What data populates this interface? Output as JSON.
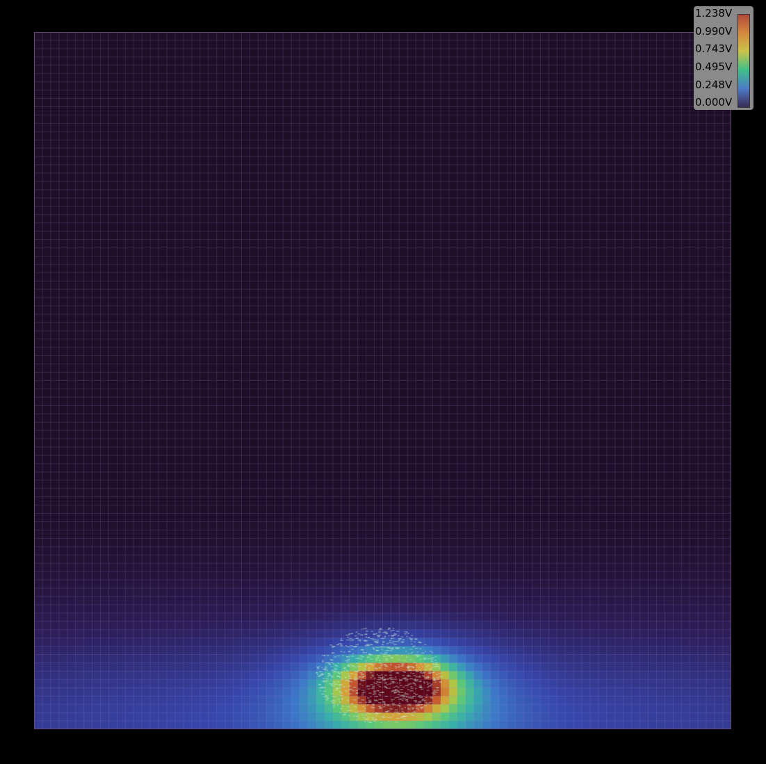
{
  "legend": {
    "labels": [
      "1.238V",
      "0.990V",
      "0.743V",
      "0.495V",
      "0.248V",
      "0.000V"
    ],
    "colors": [
      "#b0493c",
      "#d58a3c",
      "#c9c34a",
      "#3fbf8a",
      "#4d7bc9",
      "#3b2b55"
    ]
  },
  "chart_data": {
    "type": "heatmap",
    "value_unit": "V",
    "vmin": 0.0,
    "vmax": 1.238,
    "grid": true,
    "legend_placement": "top-right",
    "hotspots": [
      {
        "cx": 0.52,
        "cy": 0.94,
        "sx": 0.05,
        "sy": 0.025,
        "amp": 1.15
      },
      {
        "cx": 0.52,
        "cy": 0.96,
        "sx": 0.1,
        "sy": 0.06,
        "amp": 0.35
      },
      {
        "cx": 0.5,
        "cy": 1.0,
        "sx": 0.8,
        "sy": 0.12,
        "amp": 0.28
      }
    ]
  }
}
